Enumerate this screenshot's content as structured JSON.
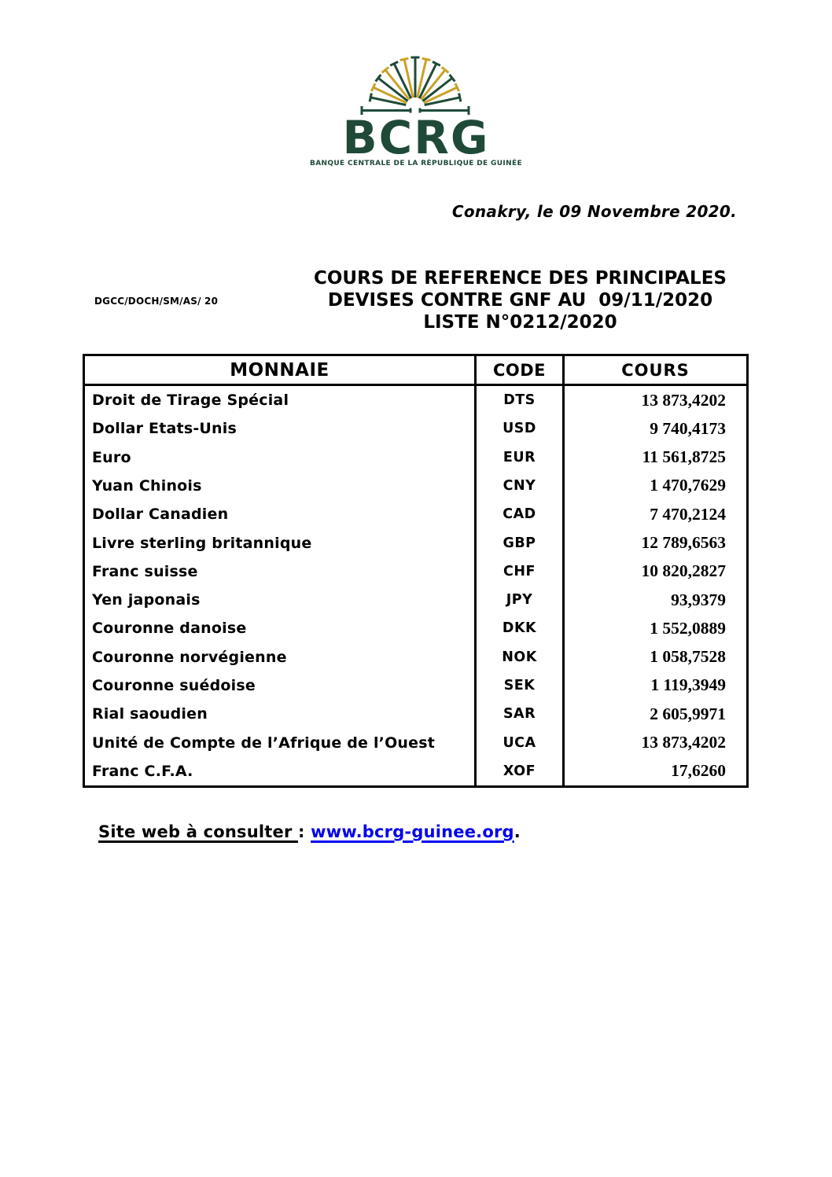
{
  "logo": {
    "wordmark": "BCRG",
    "subtitle": "BANQUE CENTRALE DE LA RÉPUBLIQUE DE GUINÉE",
    "colors": {
      "green": "#1F4A38",
      "gold": "#C9A227"
    }
  },
  "dateline": "Conakry, le 09 Novembre 2020.",
  "reference_code": "DGCC/DOCH/SM/AS/ 20",
  "title": {
    "line1": "COURS DE REFERENCE DES PRINCIPALES",
    "line2": "DEVISES CONTRE GNF AU  09/11/2020",
    "line3": "LISTE N°0212/2020"
  },
  "table": {
    "headers": {
      "monnaie": "MONNAIE",
      "code": "CODE",
      "cours": "COURS"
    },
    "rows": [
      {
        "monnaie": "Droit de Tirage Spécial",
        "code": "DTS",
        "cours": "13 873,4202"
      },
      {
        "monnaie": "Dollar Etats-Unis",
        "code": "USD",
        "cours": "9 740,4173"
      },
      {
        "monnaie": "Euro",
        "code": "EUR",
        "cours": "11 561,8725"
      },
      {
        "monnaie": "Yuan Chinois",
        "code": "CNY",
        "cours": "1 470,7629"
      },
      {
        "monnaie": "Dollar Canadien",
        "code": "CAD",
        "cours": "7 470,2124"
      },
      {
        "monnaie": "Livre sterling britannique",
        "code": "GBP",
        "cours": "12 789,6563"
      },
      {
        "monnaie": "Franc suisse",
        "code": "CHF",
        "cours": "10 820,2827"
      },
      {
        "monnaie": "Yen japonais",
        "code": "JPY",
        "cours": "93,9379"
      },
      {
        "monnaie": "Couronne danoise",
        "code": "DKK",
        "cours": "1 552,0889"
      },
      {
        "monnaie": "Couronne norvégienne",
        "code": "NOK",
        "cours": "1 058,7528"
      },
      {
        "monnaie": "Couronne suédoise",
        "code": "SEK",
        "cours": "1 119,3949"
      },
      {
        "monnaie": "Rial saoudien",
        "code": "SAR",
        "cours": "2 605,9971"
      },
      {
        "monnaie": "Unité de Compte de l’Afrique de l’Ouest",
        "code": "UCA",
        "cours": "13 873,4202"
      },
      {
        "monnaie": "Franc C.F.A.",
        "code": "XOF",
        "cours": "17,6260"
      }
    ]
  },
  "footer": {
    "label": "Site web à consulter ",
    "colon": ": ",
    "link": "www.bcrg-guinee.org",
    "period": ".",
    "link_color": "#0000EE"
  }
}
